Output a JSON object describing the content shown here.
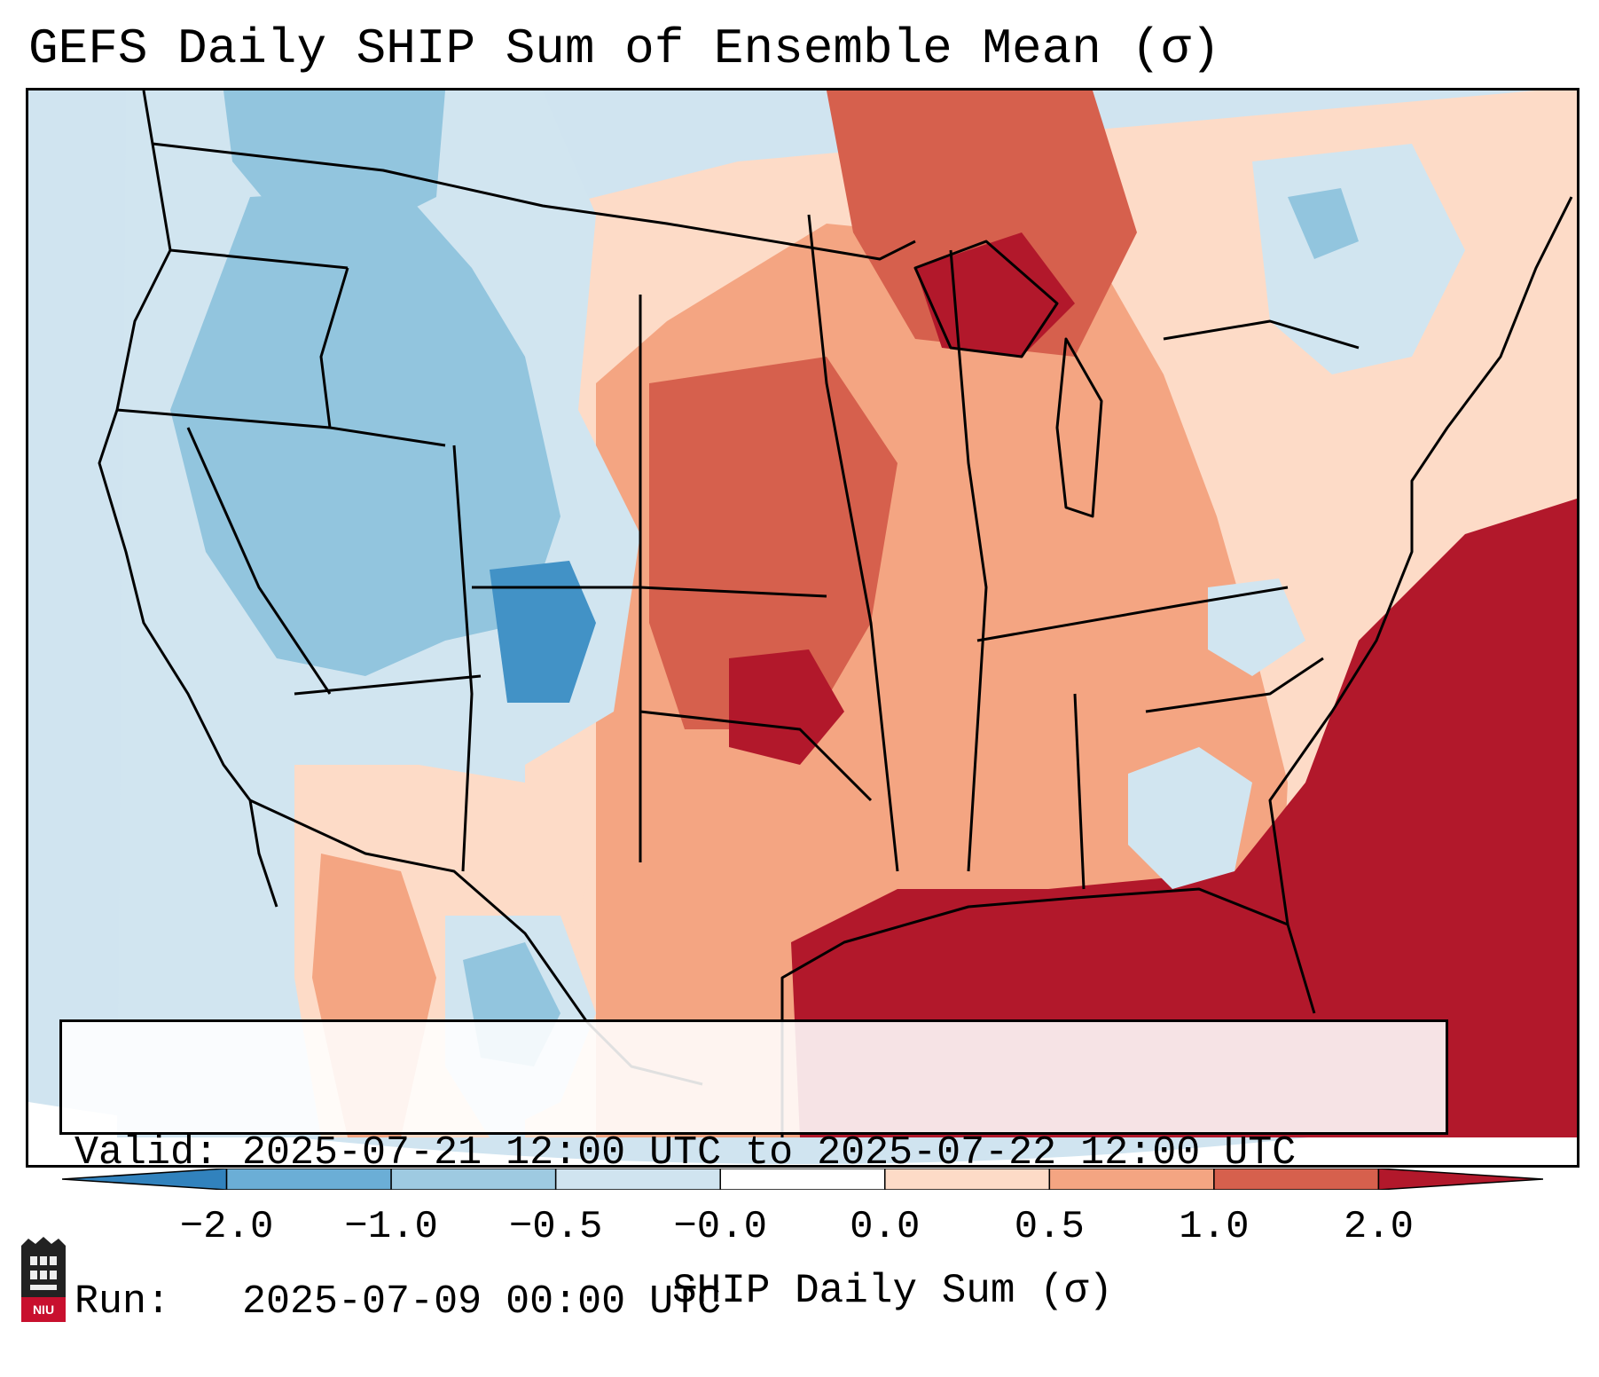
{
  "title": "GEFS Daily SHIP Sum of Ensemble Mean (σ)",
  "info": {
    "valid_line": "Valid: 2025-07-21 12:00 UTC to 2025-07-22 12:00 UTC",
    "run_line": "Run:   2025-07-09 00:00 UTC"
  },
  "colorbar": {
    "label": "SHIP Daily Sum (σ)",
    "tick_labels": [
      "−2.0",
      "−1.0",
      "−0.5",
      "−0.0",
      "0.0",
      "0.5",
      "1.0",
      "2.0"
    ],
    "colors": [
      "#3182bd",
      "#6baed6",
      "#9ecae1",
      "#d0e4f0",
      "#ffffff",
      "#fddbc7",
      "#f4a582",
      "#d6604d",
      "#b2182b"
    ]
  },
  "map": {
    "region": "Continental United States",
    "colors": {
      "ocean_background": "#d0e4f0",
      "strong_negative": "#4292c6",
      "negative": "#92c5de",
      "weak_negative": "#d1e5f0",
      "weak_positive": "#fddbc7",
      "positive": "#f4a582",
      "strong_positive": "#d6604d",
      "very_strong_positive": "#b2182b"
    }
  },
  "logo": {
    "icon": "niu-tower-icon",
    "text": "NIU"
  }
}
